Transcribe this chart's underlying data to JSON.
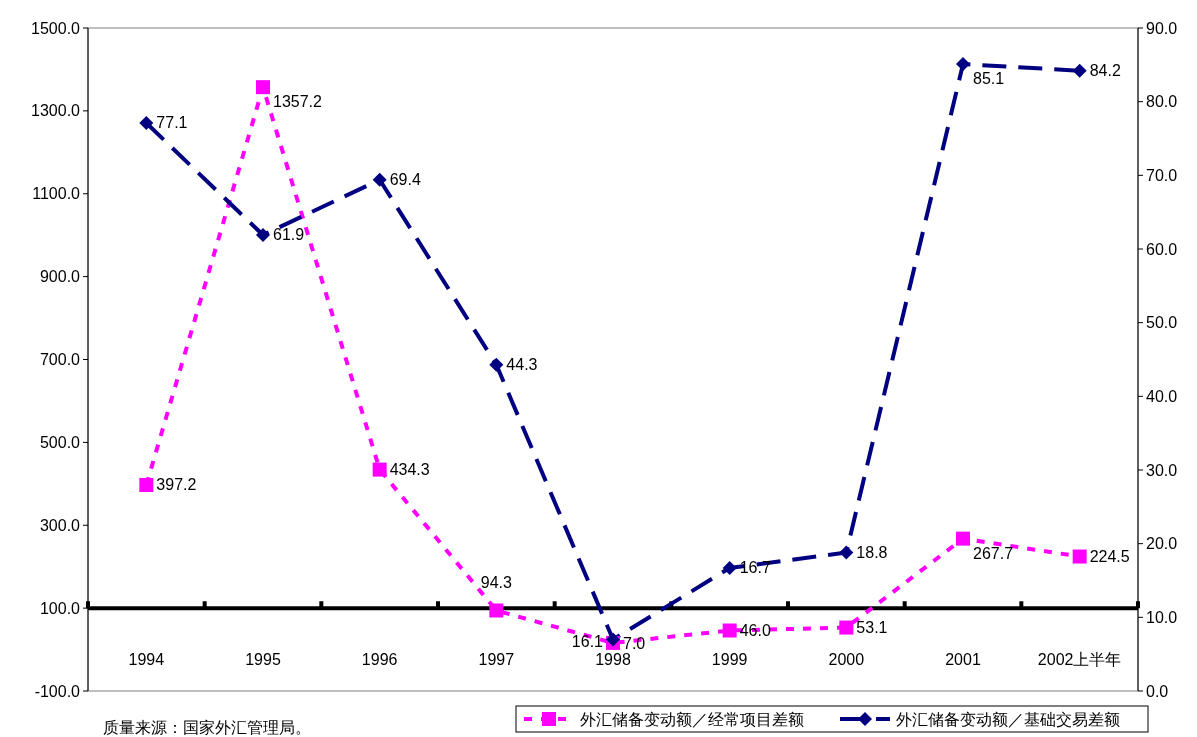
{
  "chart_data": {
    "type": "line",
    "categories": [
      "1994",
      "1995",
      "1996",
      "1997",
      "1998",
      "1999",
      "2000",
      "2001",
      "2002上半年"
    ],
    "series": [
      {
        "name": "外汇储备变动额／经常项目差额",
        "color": "#ff00ff",
        "marker": "square",
        "line_style": "dotted",
        "values": [
          397.2,
          1357.2,
          434.3,
          94.3,
          16.1,
          46.0,
          53.1,
          267.7,
          224.5
        ],
        "value_labels": [
          "397.2",
          "1357.2",
          "434.3",
          "94.3",
          "16.1",
          "46.0",
          "53.1",
          "267.7",
          "224.5"
        ]
      },
      {
        "name": "外汇储备变动额／基础交易差额",
        "color": "#000080",
        "marker": "diamond",
        "line_style": "dashed",
        "axis": "y2",
        "values": [
          77.1,
          61.9,
          69.4,
          44.3,
          7.0,
          16.7,
          18.8,
          85.1,
          84.2
        ],
        "value_labels": [
          "77.1",
          "61.9",
          "69.4",
          "44.3",
          "7.0",
          "16.7",
          "18.8",
          "85.1",
          "84.2"
        ]
      }
    ],
    "ylim": [
      -100,
      1500
    ],
    "yticks": [
      {
        "value": -100,
        "label": "-100.0"
      },
      {
        "value": 100,
        "label": "100.0"
      },
      {
        "value": 300,
        "label": "300.0"
      },
      {
        "value": 500,
        "label": "500.0"
      },
      {
        "value": 700,
        "label": "700.0"
      },
      {
        "value": 900,
        "label": "900.0"
      },
      {
        "value": 1100,
        "label": "1100.0"
      },
      {
        "value": 1300,
        "label": "1300.0"
      },
      {
        "value": 1500,
        "label": "1500.0"
      }
    ],
    "y2lim": [
      0,
      90
    ],
    "y2ticks": [
      {
        "value": 0,
        "label": "0.0"
      },
      {
        "value": 10,
        "label": "10.0"
      },
      {
        "value": 20,
        "label": "20.0"
      },
      {
        "value": 30,
        "label": "30.0"
      },
      {
        "value": 40,
        "label": "40.0"
      },
      {
        "value": 50,
        "label": "50.0"
      },
      {
        "value": 60,
        "label": "60.0"
      },
      {
        "value": 70,
        "label": "70.0"
      },
      {
        "value": 80,
        "label": "80.0"
      },
      {
        "value": 90,
        "label": "90.0"
      }
    ],
    "ref_lines": [
      {
        "axis": "y",
        "value": 100
      }
    ],
    "grid": false,
    "legend": "bottom right",
    "annotations": [
      "质量来源：国家外汇管理局。"
    ]
  }
}
